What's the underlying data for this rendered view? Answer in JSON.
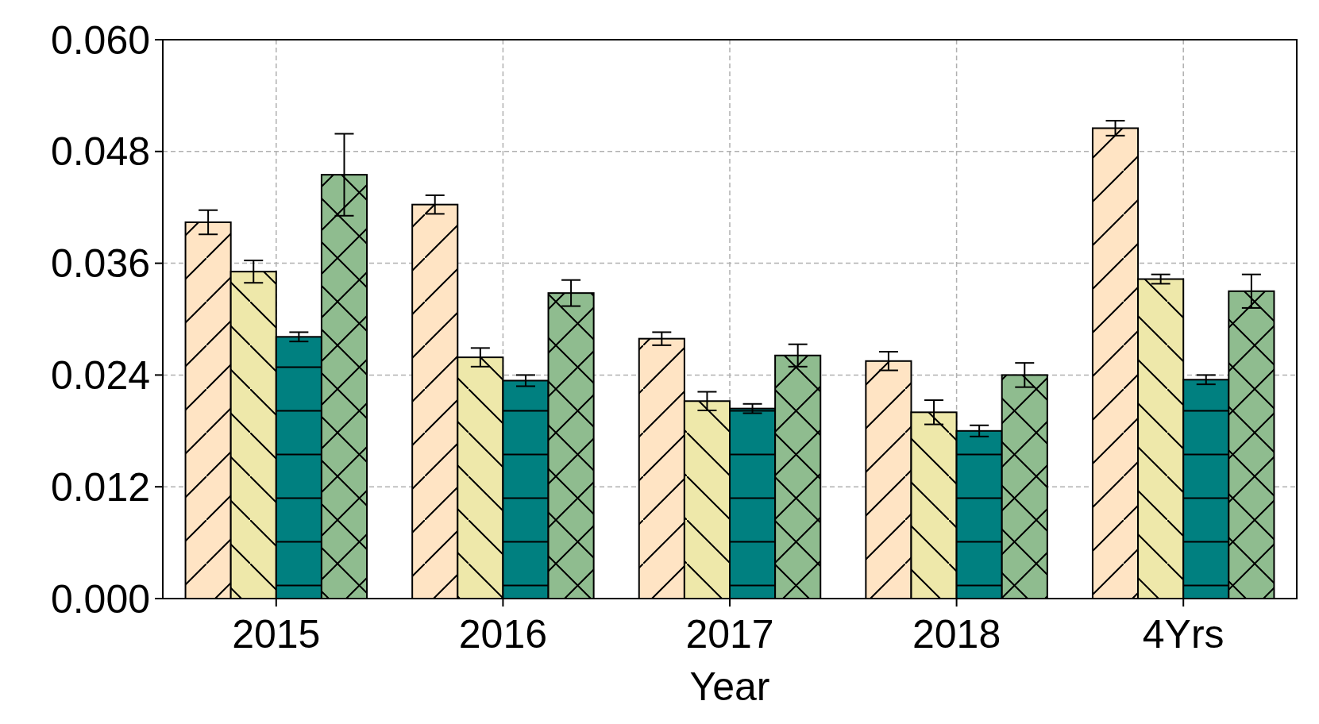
{
  "chart_data": {
    "type": "bar",
    "xlabel": "Year",
    "categories": [
      "2015",
      "2016",
      "2017",
      "2018",
      "4Yrs"
    ],
    "series": [
      {
        "color": "#ffe4c4",
        "values": [
          0.0404,
          0.0423,
          0.0279,
          0.0255,
          0.0505
        ],
        "errors": [
          0.0013,
          0.001,
          0.0007,
          0.001,
          0.0008
        ]
      },
      {
        "color": "#eee8aa",
        "values": [
          0.0351,
          0.0259,
          0.0212,
          0.02,
          0.0343
        ],
        "errors": [
          0.0012,
          0.001,
          0.001,
          0.0013,
          0.0005
        ]
      },
      {
        "color": "#008080",
        "values": [
          0.0281,
          0.0234,
          0.0204,
          0.018,
          0.0235
        ],
        "errors": [
          0.0005,
          0.0006,
          0.0005,
          0.0006,
          0.0005
        ]
      },
      {
        "color": "#8fbc8f",
        "values": [
          0.0455,
          0.0328,
          0.0261,
          0.024,
          0.033
        ],
        "errors": [
          0.0044,
          0.0014,
          0.0012,
          0.0013,
          0.0018
        ]
      }
    ],
    "ylim": [
      0,
      0.06
    ],
    "yticks": [
      {
        "value": 0,
        "label": "0.000"
      },
      {
        "value": 0.012,
        "label": "0.012"
      },
      {
        "value": 0.024,
        "label": "0.024"
      },
      {
        "value": 0.036,
        "label": "0.036"
      },
      {
        "value": 0.048,
        "label": "0.048"
      },
      {
        "value": 0.06,
        "label": "0.060"
      }
    ],
    "grid": true
  }
}
